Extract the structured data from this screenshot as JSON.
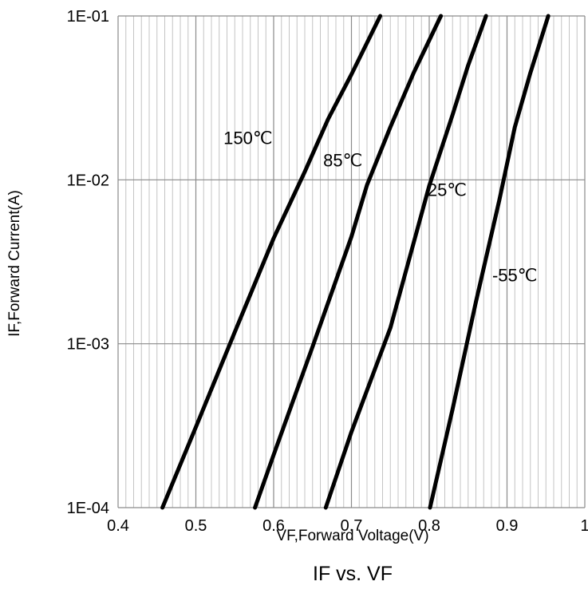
{
  "chart_data": {
    "type": "line",
    "title": "IF vs. VF",
    "xlabel": "VF,Forward Voltage(V)",
    "ylabel": "IF,Forward Current(A)",
    "xlim": [
      0.4,
      1.0
    ],
    "ylim": [
      0.0001,
      0.1
    ],
    "yscale": "log",
    "grid": true,
    "x_ticks": [
      0.4,
      0.5,
      0.6,
      0.7,
      0.8,
      0.9,
      1.0
    ],
    "x_tick_labels": [
      "0.4",
      "0.5",
      "0.6",
      "0.7",
      "0.8",
      "0.9",
      "1"
    ],
    "y_ticks": [
      0.0001,
      0.001,
      0.01,
      0.1
    ],
    "y_tick_labels": [
      "1E-04",
      "1E-03",
      "1E-02",
      "1E-01"
    ],
    "series": [
      {
        "name": "150℃",
        "label_at": [
          0.567,
          0.0165
        ],
        "points": [
          [
            0.457,
            0.0001
          ],
          [
            0.5,
            0.00031
          ],
          [
            0.55,
            0.00118
          ],
          [
            0.6,
            0.0044
          ],
          [
            0.64,
            0.0112
          ],
          [
            0.67,
            0.0235
          ],
          [
            0.7,
            0.044
          ],
          [
            0.737,
            0.1
          ]
        ]
      },
      {
        "name": "85℃",
        "label_at": [
          0.689,
          0.0121
        ],
        "points": [
          [
            0.576,
            0.0001
          ],
          [
            0.6,
            0.00021
          ],
          [
            0.65,
            0.00096
          ],
          [
            0.7,
            0.0045
          ],
          [
            0.72,
            0.0093
          ],
          [
            0.75,
            0.021
          ],
          [
            0.78,
            0.045
          ],
          [
            0.815,
            0.1
          ]
        ]
      },
      {
        "name": "25℃",
        "label_at": [
          0.823,
          0.00797
        ],
        "points": [
          [
            0.667,
            0.0001
          ],
          [
            0.7,
            0.00029
          ],
          [
            0.75,
            0.00125
          ],
          [
            0.8,
            0.0092
          ],
          [
            0.83,
            0.025
          ],
          [
            0.85,
            0.05
          ],
          [
            0.873,
            0.1
          ]
        ]
      },
      {
        "name": "-55℃",
        "label_at": [
          0.91,
          0.0024
        ],
        "points": [
          [
            0.801,
            0.0001
          ],
          [
            0.83,
            0.0004
          ],
          [
            0.86,
            0.0018
          ],
          [
            0.89,
            0.0075
          ],
          [
            0.91,
            0.021
          ],
          [
            0.93,
            0.045
          ],
          [
            0.953,
            0.1
          ]
        ]
      }
    ]
  }
}
